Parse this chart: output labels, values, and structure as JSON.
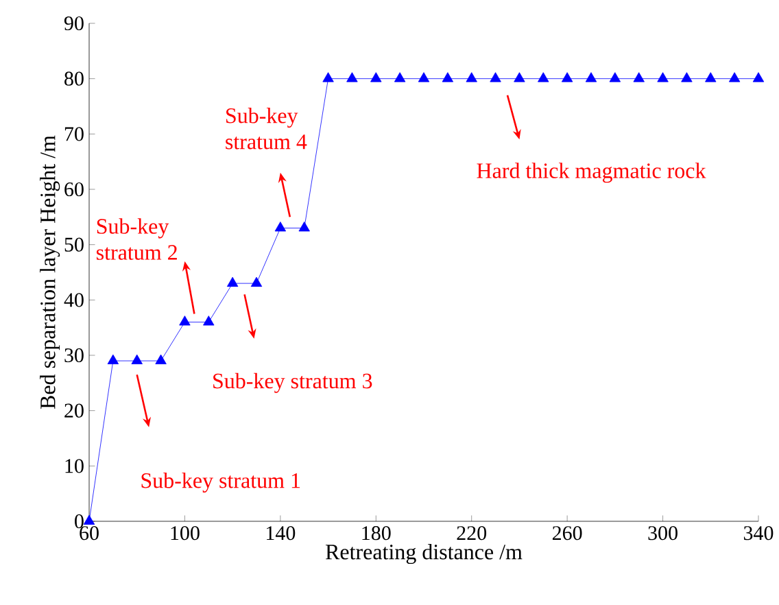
{
  "chart_data": {
    "type": "line",
    "xlabel": "Retreating distance /m",
    "ylabel": "Bed separation layer Height /m",
    "x": [
      60,
      70,
      80,
      90,
      100,
      110,
      120,
      130,
      140,
      150,
      160,
      170,
      180,
      190,
      200,
      210,
      220,
      230,
      240,
      250,
      260,
      270,
      280,
      290,
      300,
      310,
      320,
      330,
      340
    ],
    "series": [
      {
        "color": "#0000ff",
        "values": [
          0,
          29,
          29,
          29,
          36,
          36,
          43,
          43,
          53,
          53,
          80,
          80,
          80,
          80,
          80,
          80,
          80,
          80,
          80,
          80,
          80,
          80,
          80,
          80,
          80,
          80,
          80,
          80,
          80
        ]
      }
    ],
    "xlim": [
      60,
      340
    ],
    "ylim": [
      0,
      90
    ],
    "xticks": [
      60,
      100,
      140,
      180,
      220,
      260,
      300,
      340
    ],
    "yticks": [
      0,
      10,
      20,
      30,
      40,
      50,
      60,
      70,
      80,
      90
    ],
    "marker": "triangle",
    "line_style": "solid",
    "grid": false,
    "annotations": [
      "Sub-key stratum 1",
      "Sub-key stratum 2",
      "Sub-key stratum 3",
      "Sub-key stratum 4",
      "Hard thick magmatic rock"
    ]
  }
}
